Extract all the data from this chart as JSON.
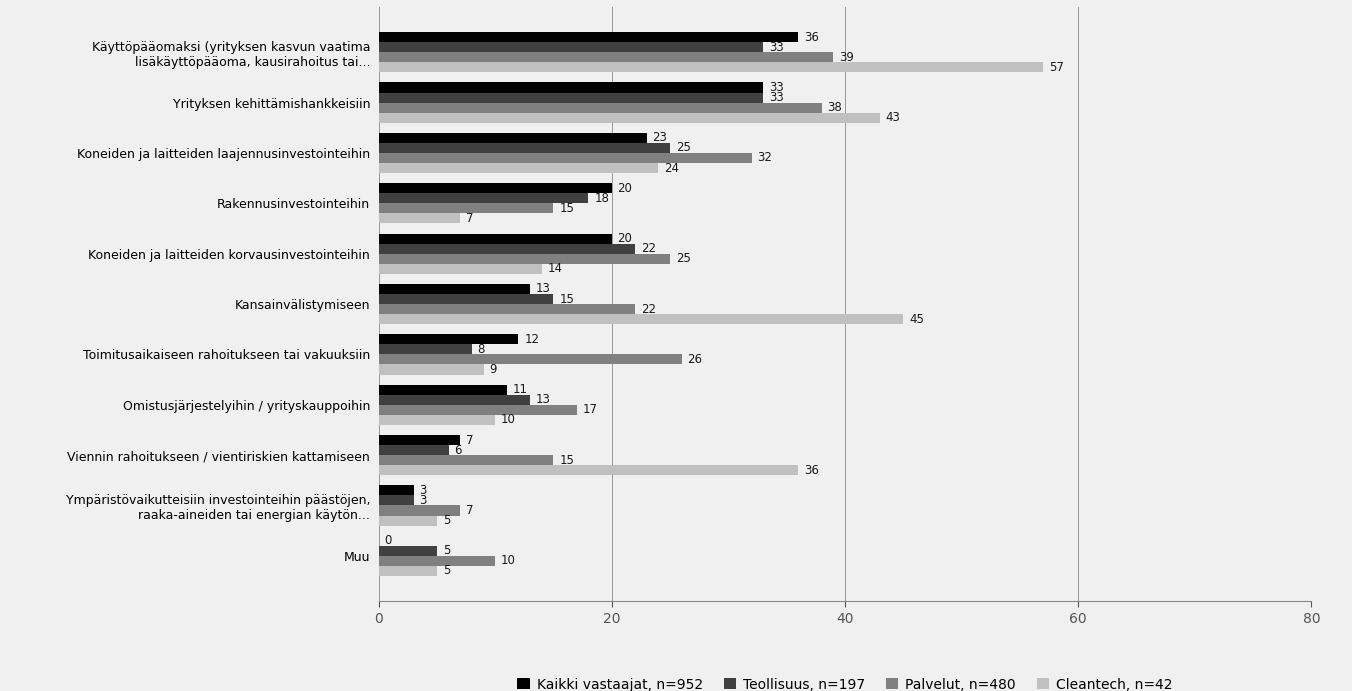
{
  "categories": [
    "Käyttöpääomaksi (yrityksen kasvun vaatima\nlisäkäyttöpääoma, kausirahoitus tai...",
    "Yrityksen kehittämishankkeisiin",
    "Koneiden ja laitteiden laajennusinvestointeihin",
    "Rakennusinvestointeihin",
    "Koneiden ja laitteiden korvausinvestointeihin",
    "Kansainvälistymiseen",
    "Toimitusaikaiseen rahoitukseen tai vakuuksiin",
    "Omistusjärjestelyihin / yrityskauppoihin",
    "Viennin rahoitukseen / vientiriskien kattamiseen",
    "Ympäristövaikutteisiin investointeihin päästöjen,\nraaka-aineiden tai energian käytön...",
    "Muu"
  ],
  "series_names": [
    "Kaikki vastaajat, n=952",
    "Teollisuus, n=197",
    "Palvelut, n=480",
    "Cleantech, n=42"
  ],
  "series_values": [
    [
      36,
      33,
      23,
      20,
      20,
      13,
      12,
      11,
      7,
      3,
      0
    ],
    [
      33,
      33,
      25,
      18,
      22,
      15,
      8,
      13,
      6,
      3,
      5
    ],
    [
      39,
      38,
      32,
      15,
      25,
      22,
      26,
      17,
      15,
      7,
      10
    ],
    [
      57,
      43,
      24,
      7,
      14,
      45,
      9,
      10,
      36,
      5,
      5
    ]
  ],
  "colors": [
    "#000000",
    "#404040",
    "#808080",
    "#c0c0c0"
  ],
  "legend_colors": [
    "#1a1a1a",
    "#404040",
    "#808080",
    "#c0c0c0"
  ],
  "xlim": [
    0,
    80
  ],
  "xticks": [
    0,
    20,
    40,
    60,
    80
  ],
  "background_color": "#f0f0f0",
  "plot_bg": "#f0f0f0",
  "bar_height": 0.2,
  "label_fontsize": 8.5,
  "ytick_fontsize": 9,
  "xtick_fontsize": 10,
  "legend_fontsize": 10
}
